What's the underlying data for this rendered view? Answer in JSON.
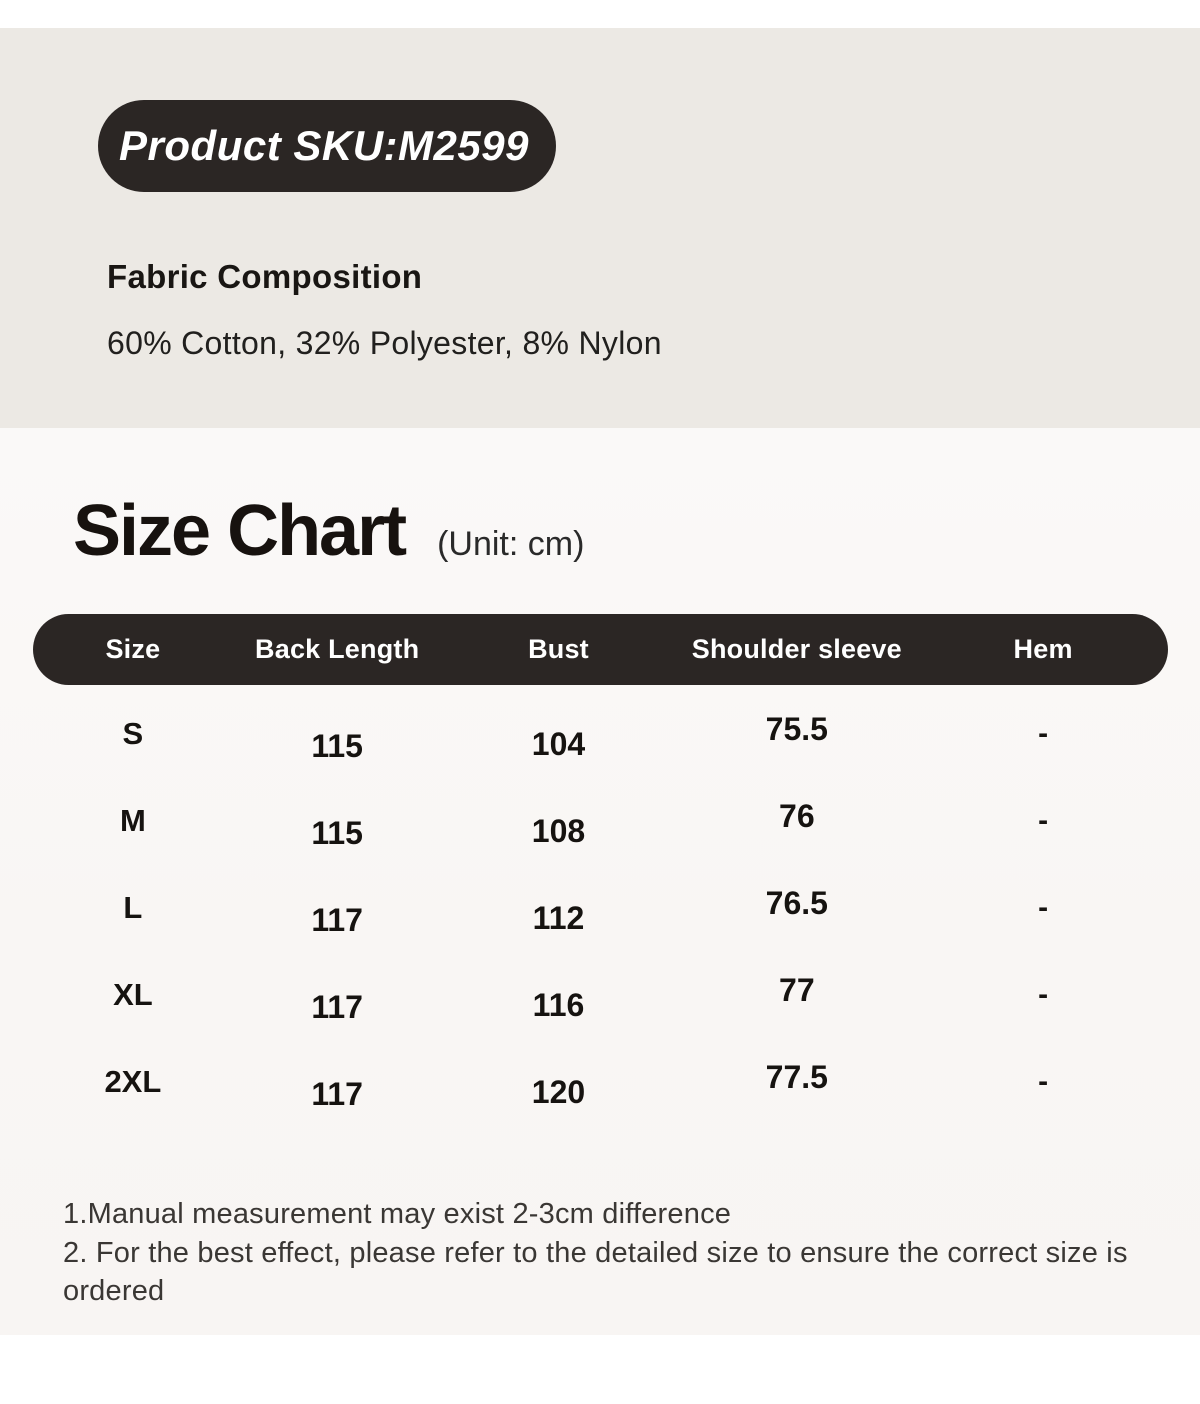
{
  "badge": {
    "label": "Product SKU:M2599"
  },
  "fabric": {
    "heading": "Fabric Composition",
    "composition": "60% Cotton, 32% Polyester, 8% Nylon"
  },
  "size_chart": {
    "title": "Size Chart",
    "unit": "(Unit: cm)",
    "columns": [
      "Size",
      "Back Length",
      "Bust",
      "Shoulder sleeve",
      "Hem"
    ],
    "rows": [
      {
        "size": "S",
        "back_length": "115",
        "bust": "104",
        "shoulder_sleeve": "75.5",
        "hem": "-"
      },
      {
        "size": "M",
        "back_length": "115",
        "bust": "108",
        "shoulder_sleeve": "76",
        "hem": "-"
      },
      {
        "size": "L",
        "back_length": "117",
        "bust": "112",
        "shoulder_sleeve": "76.5",
        "hem": "-"
      },
      {
        "size": "XL",
        "back_length": "117",
        "bust": "116",
        "shoulder_sleeve": "77",
        "hem": "-"
      },
      {
        "size": "2XL",
        "back_length": "117",
        "bust": "120",
        "shoulder_sleeve": "77.5",
        "hem": "-"
      }
    ]
  },
  "notes": {
    "line1": "1.Manual measurement may exist 2-3cm difference",
    "line2": "2. For the best effect, please refer to the detailed size to ensure the correct size is ordered"
  },
  "colors": {
    "badge_bg": "#2b2624",
    "header_bg": "#2b2624",
    "beige_section_bg": "#ece9e4",
    "chart_section_bg": "#f9f6f4",
    "text": "#171412",
    "header_text": "#ffffff"
  }
}
